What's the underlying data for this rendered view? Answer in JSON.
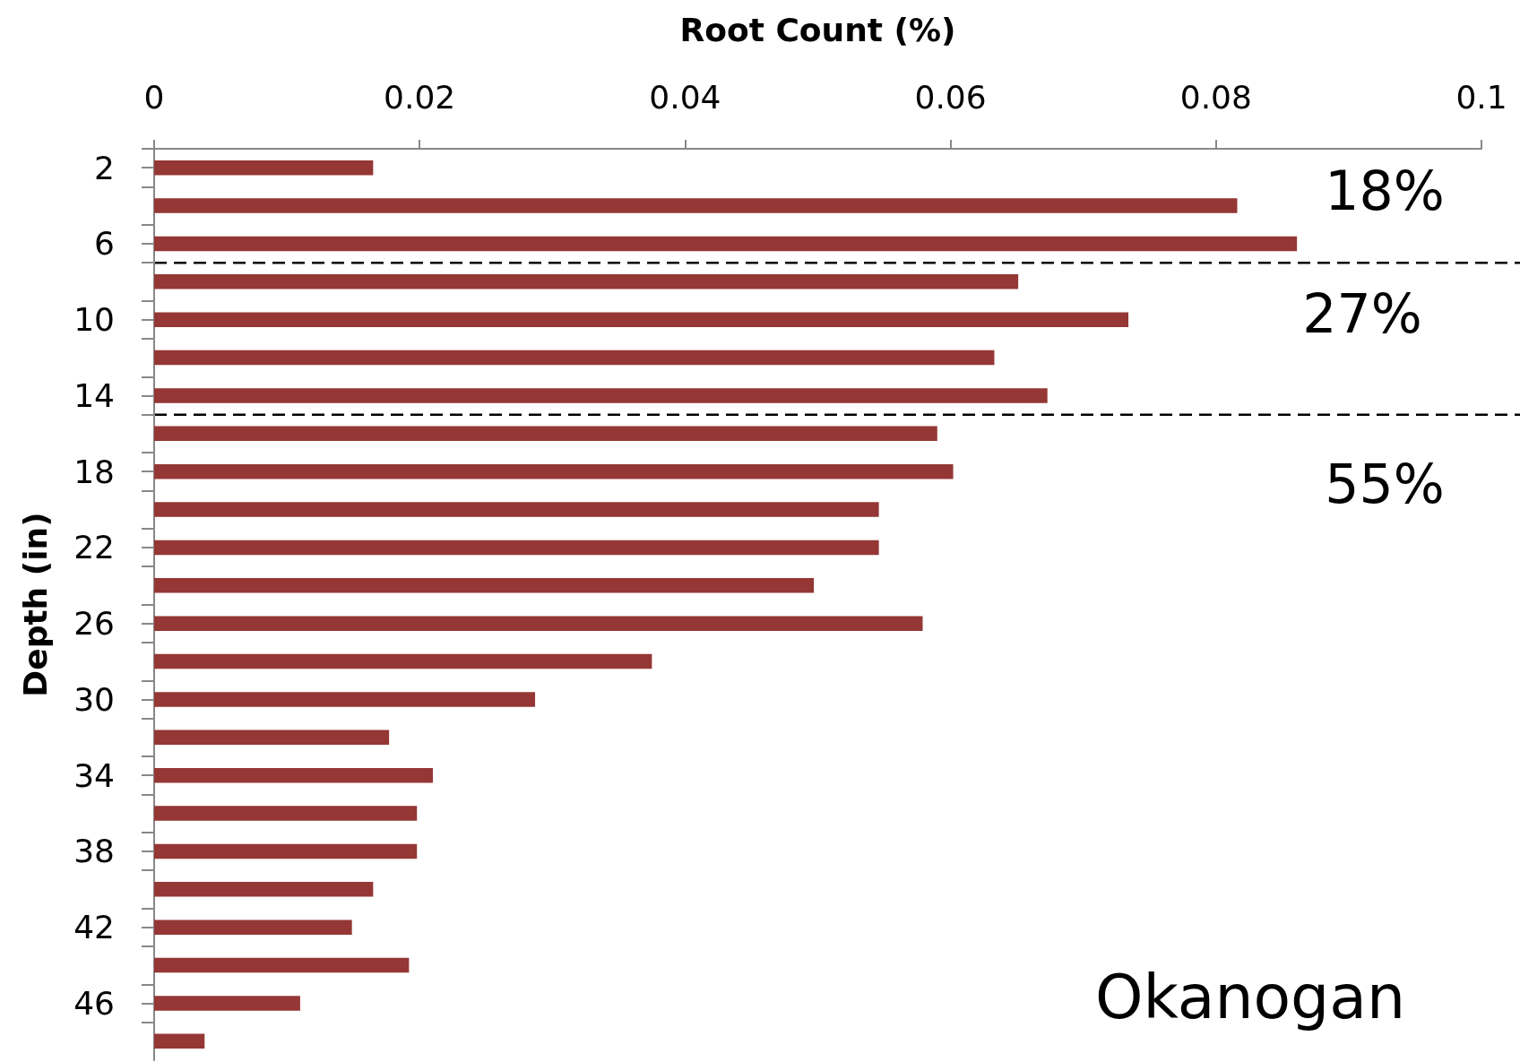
{
  "chart_data": {
    "type": "bar",
    "orientation": "horizontal",
    "xlabel": "Root Count (%)",
    "ylabel": "Depth (in)",
    "x": [
      2,
      4,
      6,
      8,
      10,
      12,
      14,
      16,
      18,
      20,
      22,
      24,
      26,
      28,
      30,
      32,
      34,
      36,
      38,
      40,
      42,
      44,
      46,
      48
    ],
    "values": [
      0.0165,
      0.0816,
      0.0861,
      0.0651,
      0.0734,
      0.0633,
      0.0673,
      0.059,
      0.0602,
      0.0546,
      0.0546,
      0.0497,
      0.0579,
      0.0375,
      0.0287,
      0.0177,
      0.021,
      0.0198,
      0.0198,
      0.0165,
      0.0149,
      0.0192,
      0.011,
      0.0038
    ],
    "color": "#953735",
    "xlim": [
      0,
      0.1
    ],
    "xticks": [
      0,
      0.02,
      0.04,
      0.06,
      0.08,
      0.1
    ],
    "ylim": [
      49,
      1
    ],
    "yticks": [
      {
        "value": 1,
        "label": null
      },
      {
        "value": 2,
        "label": "2"
      },
      {
        "value": 3,
        "label": null
      },
      {
        "value": 5,
        "label": null
      },
      {
        "value": 6,
        "label": "6"
      },
      {
        "value": 7,
        "label": null
      },
      {
        "value": 9,
        "label": null
      },
      {
        "value": 10,
        "label": "10"
      },
      {
        "value": 11,
        "label": null
      },
      {
        "value": 13,
        "label": null
      },
      {
        "value": 14,
        "label": "14"
      },
      {
        "value": 15,
        "label": null
      },
      {
        "value": 17,
        "label": null
      },
      {
        "value": 18,
        "label": "18"
      },
      {
        "value": 19,
        "label": null
      },
      {
        "value": 21,
        "label": null
      },
      {
        "value": 22,
        "label": "22"
      },
      {
        "value": 23,
        "label": null
      },
      {
        "value": 25,
        "label": null
      },
      {
        "value": 26,
        "label": "26"
      },
      {
        "value": 27,
        "label": null
      },
      {
        "value": 29,
        "label": null
      },
      {
        "value": 30,
        "label": "30"
      },
      {
        "value": 31,
        "label": null
      },
      {
        "value": 33,
        "label": null
      },
      {
        "value": 34,
        "label": "34"
      },
      {
        "value": 35,
        "label": null
      },
      {
        "value": 37,
        "label": null
      },
      {
        "value": 38,
        "label": "38"
      },
      {
        "value": 39,
        "label": null
      },
      {
        "value": 41,
        "label": null
      },
      {
        "value": 42,
        "label": "42"
      },
      {
        "value": 43,
        "label": null
      },
      {
        "value": 45,
        "label": null
      },
      {
        "value": 46,
        "label": "46"
      },
      {
        "value": 47,
        "label": null
      }
    ],
    "ref_lines": [
      {
        "axis": "y",
        "value": 7,
        "line_style": "dashed",
        "color": "#000000"
      },
      {
        "axis": "y",
        "value": 15,
        "line_style": "dashed",
        "color": "#000000"
      }
    ],
    "annotations": [
      "18%",
      "27%",
      "55%",
      "Okanogan"
    ],
    "grid": false
  }
}
